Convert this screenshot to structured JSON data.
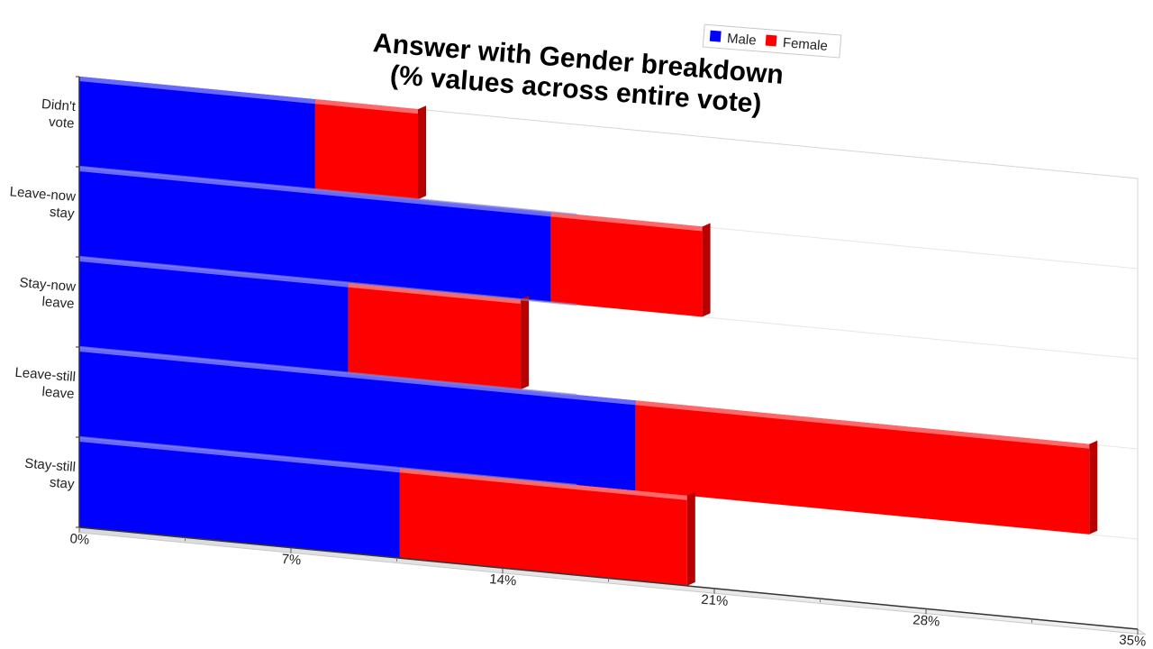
{
  "chart_data": {
    "type": "bar",
    "orientation": "horizontal",
    "stacked": true,
    "three_d": true,
    "title_lines": [
      "Answer with Gender breakdown",
      "(% values across entire vote)"
    ],
    "categories": [
      "Didn't vote",
      "Leave-now stay",
      "Stay-now leave",
      "Leave-still leave",
      "Stay-still stay"
    ],
    "category_lines": [
      [
        "Didn't",
        "vote"
      ],
      [
        "Leave-now",
        "stay"
      ],
      [
        "Stay-now",
        "leave"
      ],
      [
        "Leave-still",
        "leave"
      ],
      [
        "Stay-still",
        "stay"
      ]
    ],
    "series": [
      {
        "name": "Male",
        "color": "#0000ff",
        "values": [
          7.8,
          15.6,
          8.9,
          18.4,
          10.6
        ]
      },
      {
        "name": "Female",
        "color": "#ff0000",
        "values": [
          3.4,
          5.0,
          5.7,
          15.0,
          9.5
        ]
      }
    ],
    "x_ticks": [
      "0%",
      "7%",
      "14%",
      "21%",
      "28%",
      "35%"
    ],
    "xlim": [
      0,
      35
    ],
    "legend_position": "top-right"
  }
}
